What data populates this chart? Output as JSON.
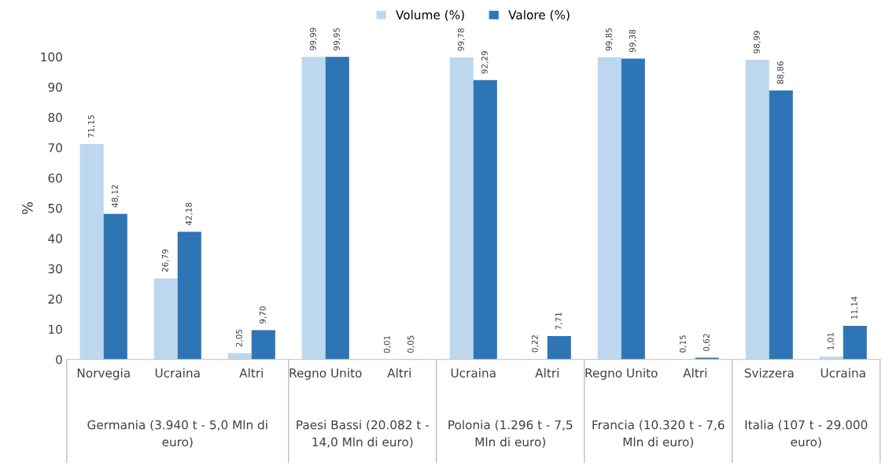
{
  "chart_data": {
    "type": "bar",
    "ylabel": "%",
    "categories": [
      "Norvegia",
      "Ucraina",
      "Altri",
      "Regno Unito",
      "Altri",
      "Ucraina",
      "Altri",
      "Regno Unito",
      "Altri",
      "Svizzera",
      "Ucraina"
    ],
    "series": [
      {
        "name": "Volume (%)",
        "color": "#bdd7ee",
        "values": [
          71.15,
          26.79,
          2.05,
          99.99,
          0.01,
          99.78,
          0.22,
          99.85,
          0.15,
          98.99,
          1.01
        ],
        "value_labels": [
          "71,15",
          "26,79",
          "2,05",
          "99,99",
          "0,01",
          "99,78",
          "0,22",
          "99,85",
          "0,15",
          "98,99",
          "1,01"
        ]
      },
      {
        "name": "Valore (%)",
        "color": "#2e75b6",
        "values": [
          48.12,
          42.18,
          9.7,
          99.95,
          0.05,
          92.29,
          7.71,
          99.38,
          0.62,
          88.86,
          11.14
        ],
        "value_labels": [
          "48,12",
          "42,18",
          "9,70",
          "99,95",
          "0,05",
          "92,29",
          "7,71",
          "99,38",
          "0,62",
          "88,86",
          "11,14"
        ]
      }
    ],
    "ylim": [
      0,
      100
    ],
    "yticks": [
      0,
      10,
      20,
      30,
      40,
      50,
      60,
      70,
      80,
      90,
      100
    ],
    "grid": false,
    "legend": "top",
    "annotations": [
      "Germania (3.940 t - 5,0 Mln di\neuro)",
      "Paesi Bassi (20.082 t -\n14,0 Mln di euro)",
      "Polonia (1.296 t - 7,5\nMln di euro)",
      "Francia (10.320 t - 7,6\nMln di euro)",
      "Italia (107 t - 29.000\neuro)"
    ]
  }
}
